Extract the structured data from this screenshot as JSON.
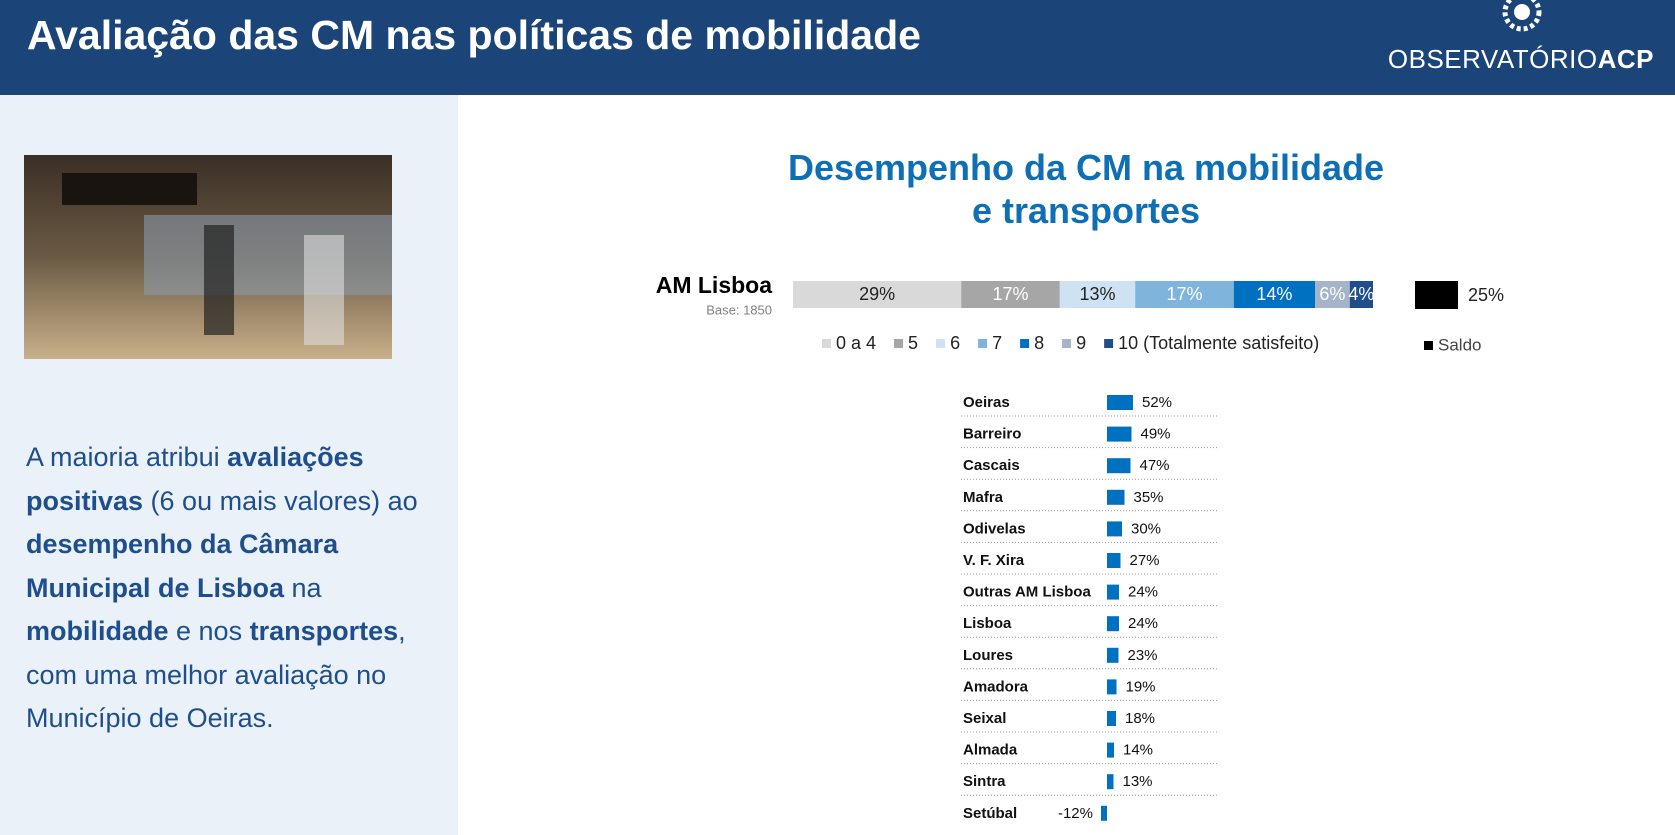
{
  "header": {
    "title": "Avaliação das CM nas políticas de mobilidade",
    "logo_light": "OBSERVATÓRIO",
    "logo_bold": "ACP"
  },
  "text": {
    "paragraph": [
      {
        "text": "A maioria atribui ",
        "bold": false
      },
      {
        "text": "avaliações positivas",
        "bold": true
      },
      {
        "text": " (6 ou mais valores) ao ",
        "bold": false
      },
      {
        "text": "desempenho da Câmara Municipal de Lisboa",
        "bold": true
      },
      {
        "text": " na ",
        "bold": false
      },
      {
        "text": "mobilidade",
        "bold": true
      },
      {
        "text": " e nos ",
        "bold": false
      },
      {
        "text": "transportes",
        "bold": true
      },
      {
        "text": ", com uma melhor avaliação no Município de Oeiras.",
        "bold": false
      }
    ]
  },
  "chart_data": [
    {
      "type": "stacked_bar",
      "title": "Desempenho da CM na mobilidade e transportes",
      "categories": [
        "AM Lisboa"
      ],
      "subtitle": "Base: 1850",
      "xlim": [
        0,
        100
      ],
      "series": [
        {
          "name": "0 a 4",
          "color": "#d9d9d9",
          "values": [
            29
          ],
          "value_labels": [
            "29%"
          ]
        },
        {
          "name": "5",
          "color": "#a6a6a6",
          "values": [
            17
          ],
          "value_labels": [
            "17%"
          ]
        },
        {
          "name": "6",
          "color": "#cfe2f3",
          "values": [
            13
          ],
          "value_labels": [
            "13%"
          ]
        },
        {
          "name": "7",
          "color": "#7fb5dd",
          "values": [
            17
          ],
          "value_labels": [
            "17%"
          ]
        },
        {
          "name": "8",
          "color": "#0070c0",
          "values": [
            14
          ],
          "value_labels": [
            "14%"
          ]
        },
        {
          "name": "9",
          "color": "#a5b4c9",
          "values": [
            6
          ],
          "value_labels": [
            "6%"
          ]
        },
        {
          "name": "10 (Totalmente satisfeito)",
          "color": "#1f4e8c",
          "values": [
            4
          ],
          "value_labels": [
            "4%"
          ]
        }
      ],
      "saldo": {
        "name": "Saldo",
        "color": "#000000",
        "values": [
          25
        ],
        "value_labels": [
          "25%"
        ]
      }
    },
    {
      "type": "hbar",
      "color": "#0070c0",
      "categories": [
        "Oeiras",
        "Barreiro",
        "Cascais",
        "Mafra",
        "Odivelas",
        "V. F. Xira",
        "Outras AM Lisboa",
        "Lisboa",
        "Loures",
        "Amadora",
        "Seixal",
        "Almada",
        "Sintra",
        "Setúbal"
      ],
      "values": [
        52,
        49,
        47,
        35,
        30,
        27,
        24,
        24,
        23,
        19,
        18,
        14,
        13,
        -12
      ],
      "value_labels": [
        "52%",
        "49%",
        "47%",
        "35%",
        "30%",
        "27%",
        "24%",
        "24%",
        "23%",
        "19%",
        "18%",
        "14%",
        "13%",
        "-12%"
      ]
    }
  ]
}
